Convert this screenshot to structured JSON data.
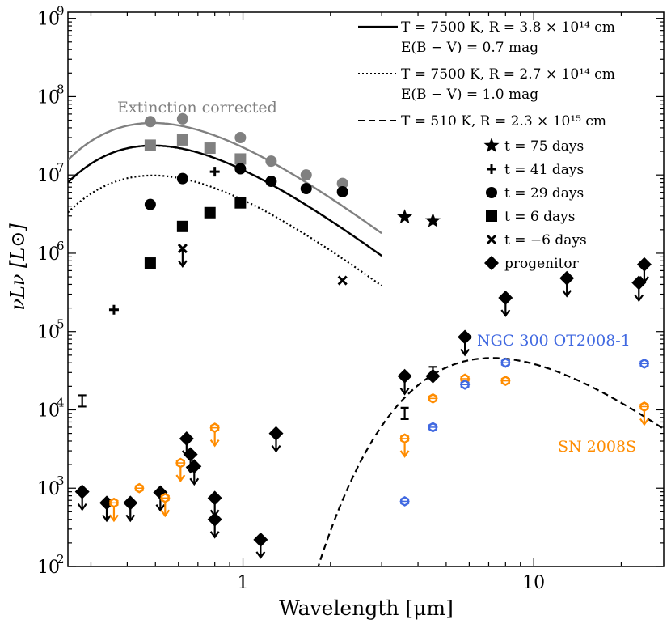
{
  "chart_data": {
    "type": "scatter",
    "title": "",
    "xlabel": "Wavelength [μm]",
    "ylabel": "νLν [L⊙]",
    "xscale": "log",
    "yscale": "log",
    "xlim": [
      0.25,
      28
    ],
    "ylim": [
      100,
      1200000000
    ],
    "x_ticks": [
      {
        "value": 1,
        "label": "1"
      },
      {
        "value": 10,
        "label": "10"
      }
    ],
    "y_ticks": [
      {
        "value": 100,
        "base": "10",
        "exp": "2"
      },
      {
        "value": 1000,
        "base": "10",
        "exp": "3"
      },
      {
        "value": 10000,
        "base": "10",
        "exp": "4"
      },
      {
        "value": 100000,
        "base": "10",
        "exp": "5"
      },
      {
        "value": 1000000,
        "base": "10",
        "exp": "6"
      },
      {
        "value": 10000000,
        "base": "10",
        "exp": "7"
      },
      {
        "value": 100000000,
        "base": "10",
        "exp": "8"
      },
      {
        "value": 1000000000,
        "base": "10",
        "exp": "9"
      }
    ],
    "annotations": {
      "extinction_corrected": "Extinction corrected",
      "ngc300": "NGC 300 OT2008-1",
      "sn2008s": "SN 2008S"
    },
    "colors": {
      "ngc300": "#4169e1",
      "sn2008s": "#ff8c00",
      "corrected": "#808080",
      "main": "#000000"
    },
    "legend": {
      "position": "top-right",
      "lines": [
        {
          "style": "solid",
          "text1": "T = 7500 K, R = 3.8 × 10¹⁴ cm",
          "text2": "E(B − V) = 0.7 mag"
        },
        {
          "style": "dotted",
          "text1": "T = 7500 K, R = 2.7 × 10¹⁴ cm",
          "text2": "E(B − V) = 1.0 mag"
        },
        {
          "style": "dashed",
          "text1": "T = 510 K, R = 2.3 × 10¹⁵ cm"
        }
      ],
      "markers": [
        {
          "marker": "star",
          "text": "t = 75 days"
        },
        {
          "marker": "plus",
          "text": "t = 41 days"
        },
        {
          "marker": "circle",
          "text": "t = 29 days"
        },
        {
          "marker": "square",
          "text": "t = 6 days"
        },
        {
          "marker": "x",
          "text": "t = −6 days"
        },
        {
          "marker": "diamond",
          "text": "progenitor"
        }
      ]
    },
    "models": [
      {
        "name": "7500 K solid (corrected)",
        "style": "solid",
        "color": "#808080",
        "T": 7500,
        "peak_lambda": 0.55,
        "peak": 45000000,
        "lambda_range": [
          0.25,
          3.0
        ]
      },
      {
        "name": "7500 K dotted (corrected)",
        "style": "dotted",
        "color": "#808080",
        "T": 7500,
        "peak_lambda": 0.55,
        "peak": 23000000,
        "lambda_range": [
          0.25,
          3.0
        ]
      },
      {
        "name": "7500 K solid E(B-V)=0.7",
        "style": "solid",
        "color": "#000000",
        "T": 7500,
        "peak_lambda": 0.98,
        "peak": 12000000,
        "lambda_range": [
          0.25,
          3.0
        ]
      },
      {
        "name": "7500 K dotted E(B-V)=1.0",
        "style": "dotted",
        "color": "#000000",
        "T": 7500,
        "peak_lambda": 1.05,
        "peak": 4400000,
        "lambda_range": [
          0.25,
          3.0
        ]
      },
      {
        "name": "510 K dashed",
        "style": "dashed",
        "color": "#000000",
        "T": 510,
        "peak_lambda": 7.2,
        "peak": 46000,
        "lambda_range": [
          1.8,
          28
        ]
      }
    ],
    "series": [
      {
        "name": "t = 29 days (corrected)",
        "marker": "circle",
        "color": "#808080",
        "points": [
          [
            0.48,
            48000000
          ],
          [
            0.62,
            52000000
          ],
          [
            0.98,
            30000000
          ],
          [
            1.25,
            15000000
          ],
          [
            1.65,
            10000000
          ],
          [
            2.2,
            7800000
          ]
        ]
      },
      {
        "name": "t = 6 days (corrected)",
        "marker": "square",
        "color": "#808080",
        "points": [
          [
            0.48,
            24000000
          ],
          [
            0.62,
            28000000
          ],
          [
            0.77,
            22000000
          ],
          [
            0.98,
            16000000
          ]
        ]
      },
      {
        "name": "t = 75 days",
        "marker": "star",
        "color": "#000000",
        "points": [
          [
            3.6,
            2900000
          ],
          [
            4.5,
            2600000
          ]
        ]
      },
      {
        "name": "t = 41 days",
        "marker": "plus",
        "color": "#000000",
        "points": [
          [
            0.36,
            190000
          ],
          [
            0.8,
            11000000
          ]
        ]
      },
      {
        "name": "t = 29 days",
        "marker": "circle",
        "color": "#000000",
        "points": [
          [
            0.48,
            4200000
          ],
          [
            0.62,
            9000000
          ],
          [
            0.98,
            12000000
          ],
          [
            1.25,
            8300000
          ],
          [
            1.65,
            6700000
          ],
          [
            2.2,
            6100000
          ]
        ]
      },
      {
        "name": "t = 6 days",
        "marker": "square",
        "color": "#000000",
        "points": [
          [
            0.48,
            750000
          ],
          [
            0.62,
            2200000
          ],
          [
            0.77,
            3300000
          ],
          [
            0.98,
            4400000
          ]
        ]
      },
      {
        "name": "t = -6 days",
        "marker": "x",
        "color": "#000000",
        "points": [
          [
            0.62,
            1150000
          ],
          [
            2.2,
            450000
          ]
        ],
        "upper_limits": [
          true,
          false
        ]
      },
      {
        "name": "progenitor",
        "marker": "diamond",
        "color": "#000000",
        "points": [
          [
            0.28,
            900
          ],
          [
            0.34,
            650
          ],
          [
            0.41,
            650
          ],
          [
            0.52,
            880
          ],
          [
            0.64,
            4300
          ],
          [
            0.66,
            2700
          ],
          [
            0.68,
            1900
          ],
          [
            0.8,
            750
          ],
          [
            0.8,
            400
          ],
          [
            1.15,
            220
          ],
          [
            1.3,
            5000
          ],
          [
            3.6,
            27000
          ],
          [
            4.5,
            27000
          ],
          [
            5.8,
            85000
          ],
          [
            8.0,
            270000
          ],
          [
            13.0,
            480000
          ],
          [
            23.0,
            420000
          ],
          [
            24.0,
            720000
          ]
        ],
        "upper_limits": [
          true,
          true,
          true,
          true,
          true,
          true,
          true,
          true,
          true,
          true,
          true,
          true,
          false,
          true,
          true,
          true,
          true,
          true
        ]
      },
      {
        "name": "SN 2008S",
        "marker": "hexagon",
        "color": "#ff8c00",
        "points": [
          [
            0.36,
            650
          ],
          [
            0.44,
            1000
          ],
          [
            0.54,
            750
          ],
          [
            0.61,
            2100
          ],
          [
            0.8,
            5900
          ],
          [
            3.6,
            4300
          ],
          [
            4.5,
            14000
          ],
          [
            5.8,
            25000
          ],
          [
            8.0,
            23500
          ],
          [
            24.0,
            11000
          ]
        ],
        "upper_limits": [
          true,
          false,
          true,
          true,
          true,
          true,
          false,
          false,
          false,
          true
        ]
      },
      {
        "name": "NGC 300 OT2008-1",
        "marker": "hexagon",
        "color": "#4169e1",
        "points": [
          [
            3.6,
            680
          ],
          [
            4.5,
            6000
          ],
          [
            5.8,
            21000
          ],
          [
            8.0,
            40000
          ],
          [
            24.0,
            39000
          ]
        ]
      },
      {
        "name": "unlabeled error-bar points",
        "marker": "errorbar",
        "color": "#000000",
        "points": [
          [
            0.28,
            13000
          ],
          [
            3.6,
            9000
          ],
          [
            4.5,
            30000
          ]
        ]
      }
    ]
  }
}
